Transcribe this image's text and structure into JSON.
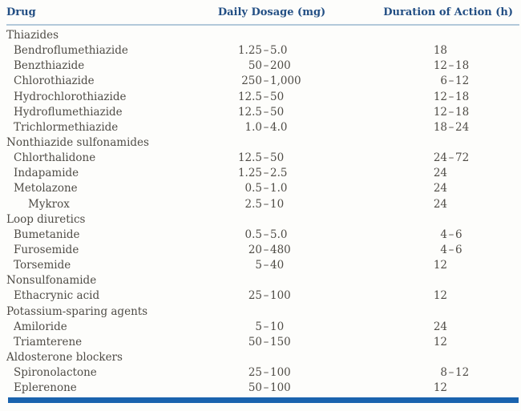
{
  "page": {
    "background": "#fdfdfb"
  },
  "table": {
    "en_dash": "–",
    "headers": {
      "drug": "Drug",
      "dosage": "Daily Dosage (mg)",
      "duration": "Duration of Action (h)"
    },
    "colors": {
      "header_text": "#234f84",
      "header_rule": "#b3c9da",
      "body_text": "#4f4c46",
      "bottom_bar": "#1a63ae"
    },
    "rows": [
      {
        "kind": "group",
        "indent": 0,
        "drug": "Thiazides"
      },
      {
        "kind": "drug",
        "indent": 1,
        "drug": "Bendroflumethiazide",
        "dosage": {
          "lo": "1.25",
          "hi": "5.0"
        },
        "duration": {
          "lo": "18",
          "hi": ""
        }
      },
      {
        "kind": "drug",
        "indent": 1,
        "drug": "Benzthiazide",
        "dosage": {
          "lo": "50",
          "hi": "200"
        },
        "duration": {
          "lo": "12",
          "hi": "18"
        }
      },
      {
        "kind": "drug",
        "indent": 1,
        "drug": "Chlorothiazide",
        "dosage": {
          "lo": "250",
          "hi": "1,000"
        },
        "duration": {
          "lo": "6",
          "hi": "12"
        }
      },
      {
        "kind": "drug",
        "indent": 1,
        "drug": "Hydrochlorothiazide",
        "dosage": {
          "lo": "12.5",
          "hi": "50"
        },
        "duration": {
          "lo": "12",
          "hi": "18"
        }
      },
      {
        "kind": "drug",
        "indent": 1,
        "drug": "Hydroflumethiazide",
        "dosage": {
          "lo": "12.5",
          "hi": "50"
        },
        "duration": {
          "lo": "12",
          "hi": "18"
        }
      },
      {
        "kind": "drug",
        "indent": 1,
        "drug": "Trichlormethiazide",
        "dosage": {
          "lo": "1.0",
          "hi": "4.0"
        },
        "duration": {
          "lo": "18",
          "hi": "24"
        }
      },
      {
        "kind": "group",
        "indent": 0,
        "drug": "Nonthiazide sulfonamides"
      },
      {
        "kind": "drug",
        "indent": 1,
        "drug": "Chlorthalidone",
        "dosage": {
          "lo": "12.5",
          "hi": "50"
        },
        "duration": {
          "lo": "24",
          "hi": "72"
        }
      },
      {
        "kind": "drug",
        "indent": 1,
        "drug": "Indapamide",
        "dosage": {
          "lo": "1.25",
          "hi": "2.5"
        },
        "duration": {
          "lo": "24",
          "hi": ""
        }
      },
      {
        "kind": "drug",
        "indent": 1,
        "drug": "Metolazone",
        "dosage": {
          "lo": "0.5",
          "hi": "1.0"
        },
        "duration": {
          "lo": "24",
          "hi": ""
        }
      },
      {
        "kind": "drug",
        "indent": 2,
        "drug": "Mykrox",
        "dosage": {
          "lo": "2.5",
          "hi": "10"
        },
        "duration": {
          "lo": "24",
          "hi": ""
        }
      },
      {
        "kind": "group",
        "indent": 0,
        "drug": "Loop diuretics"
      },
      {
        "kind": "drug",
        "indent": 1,
        "drug": "Bumetanide",
        "dosage": {
          "lo": "0.5",
          "hi": "5.0"
        },
        "duration": {
          "lo": "4",
          "hi": "6"
        }
      },
      {
        "kind": "drug",
        "indent": 1,
        "drug": "Furosemide",
        "dosage": {
          "lo": "20",
          "hi": "480"
        },
        "duration": {
          "lo": "4",
          "hi": "6"
        }
      },
      {
        "kind": "drug",
        "indent": 1,
        "drug": "Torsemide",
        "dosage": {
          "lo": "5",
          "hi": "40"
        },
        "duration": {
          "lo": "12",
          "hi": ""
        }
      },
      {
        "kind": "group",
        "indent": 0,
        "drug": "Nonsulfonamide"
      },
      {
        "kind": "drug",
        "indent": 1,
        "drug": "Ethacrynic acid",
        "dosage": {
          "lo": "25",
          "hi": "100"
        },
        "duration": {
          "lo": "12",
          "hi": ""
        }
      },
      {
        "kind": "group",
        "indent": 0,
        "drug": "Potassium-sparing agents"
      },
      {
        "kind": "drug",
        "indent": 1,
        "drug": "Amiloride",
        "dosage": {
          "lo": "5",
          "hi": "10"
        },
        "duration": {
          "lo": "24",
          "hi": ""
        }
      },
      {
        "kind": "drug",
        "indent": 1,
        "drug": "Triamterene",
        "dosage": {
          "lo": "50",
          "hi": "150"
        },
        "duration": {
          "lo": "12",
          "hi": ""
        }
      },
      {
        "kind": "group",
        "indent": 0,
        "drug": "Aldosterone blockers"
      },
      {
        "kind": "drug",
        "indent": 1,
        "drug": "Spironolactone",
        "dosage": {
          "lo": "25",
          "hi": "100"
        },
        "duration": {
          "lo": "8",
          "hi": "12"
        }
      },
      {
        "kind": "drug",
        "indent": 1,
        "drug": "Eplerenone",
        "dosage": {
          "lo": "50",
          "hi": "100"
        },
        "duration": {
          "lo": "12",
          "hi": ""
        }
      }
    ]
  }
}
